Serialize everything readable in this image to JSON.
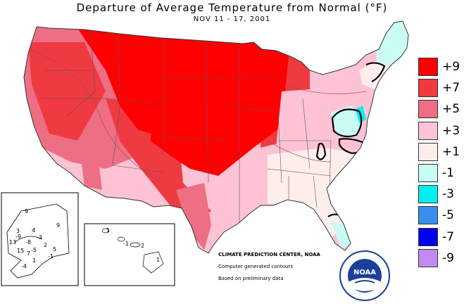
{
  "title": "Departure of Average Temperature from Normal (°F)",
  "subtitle": "NOV 11 - 17, 2001",
  "legend": [
    {
      "label": "+9",
      "color": "#ff0000"
    },
    {
      "label": "+7",
      "color": "#f03a42"
    },
    {
      "label": "+5",
      "color": "#ee6e84"
    },
    {
      "label": "+3",
      "color": "#fdc3d4"
    },
    {
      "label": "+1",
      "color": "#fdeeec"
    },
    {
      "label": "-1",
      "color": "#c8fcf4"
    },
    {
      "label": "-3",
      "color": "#00f0f0"
    },
    {
      "label": "-5",
      "color": "#3a8ef0"
    },
    {
      "label": "-7",
      "color": "#0000f0"
    },
    {
      "label": "-9",
      "color": "#c28af0"
    }
  ],
  "credits": {
    "line1": "CLIMATE PREDICTION CENTER, NOAA",
    "line2": "Computer generated contours",
    "line3": "Based on preliminary data"
  },
  "noaa_logo_text": "NOAA",
  "alaska_labels": [
    "9",
    "3",
    "4",
    "-3",
    "-8",
    "-9",
    "13",
    "-5",
    "2",
    "15",
    "7",
    "5",
    "-1",
    "1",
    "-4"
  ],
  "hawaii_labels": [
    "1",
    "-1",
    "2",
    "1"
  ]
}
